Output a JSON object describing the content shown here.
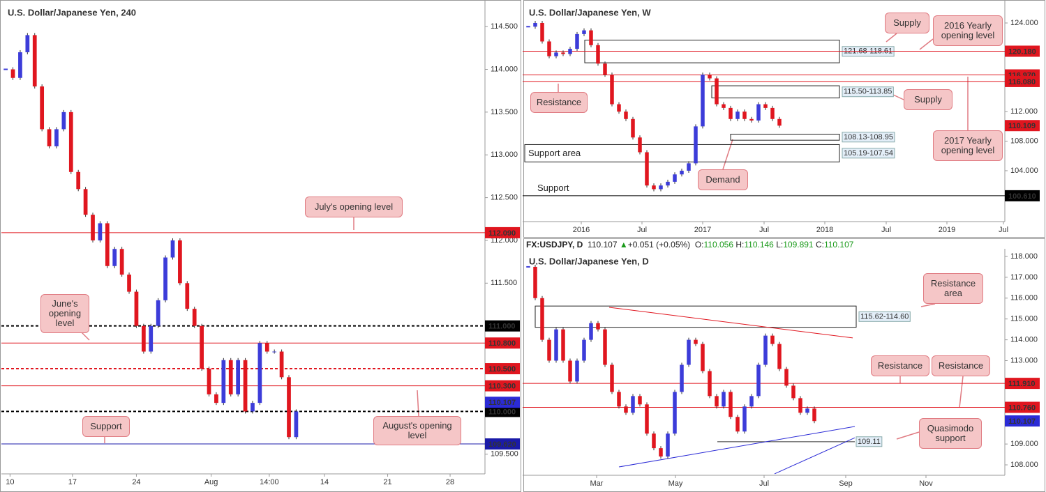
{
  "chart_data": [
    {
      "type": "candlestick",
      "title": "U.S. Dollar/Japanese Yen, 240",
      "values": [
        114.0,
        113.9,
        114.2,
        114.4,
        113.8,
        113.3,
        113.1,
        113.3,
        113.5,
        112.8,
        112.6,
        112.3,
        112.0,
        112.2,
        111.7,
        111.9,
        111.6,
        111.4,
        111.0,
        110.7,
        111.0,
        111.3,
        111.8,
        112.0,
        111.5,
        111.2,
        111.0,
        110.5,
        110.2,
        110.1,
        110.6,
        110.2,
        110.6,
        110.0,
        110.1,
        110.8,
        110.7,
        110.7,
        110.4,
        109.7,
        110.0
      ],
      "xlim": [
        -0.3,
        66
      ],
      "ylim": [
        109.27,
        114.77
      ],
      "xticks": [
        {
          "value": 0.6,
          "label": "10"
        },
        {
          "value": 9.2,
          "label": "17"
        },
        {
          "value": 18,
          "label": "24"
        },
        {
          "value": 28.3,
          "label": "Aug"
        },
        {
          "value": 36.3,
          "label": "14:00"
        },
        {
          "value": 43.9,
          "label": "14"
        },
        {
          "value": 52.6,
          "label": "21"
        },
        {
          "value": 61.2,
          "label": "28"
        }
      ],
      "yticks": [
        {
          "value": 114.5,
          "label": "114.500"
        },
        {
          "value": 114,
          "label": "114.000"
        },
        {
          "value": 113.5,
          "label": "113.500"
        },
        {
          "value": 113,
          "label": "113.000"
        },
        {
          "value": 112.5,
          "label": "112.500"
        },
        {
          "value": 112,
          "label": "112.000"
        },
        {
          "value": 111.5,
          "label": "111.500"
        },
        {
          "value": 109.5,
          "label": "109.500"
        }
      ],
      "levels": [
        {
          "value": 112.09,
          "label": "112.090",
          "color": "#e0161f",
          "dash": false
        },
        {
          "value": 111,
          "label": "111.000",
          "color": "#000000",
          "dash": true
        },
        {
          "value": 110.8,
          "label": "110.800",
          "color": "#e0161f",
          "dash": false
        },
        {
          "value": 110.5,
          "label": "110.500",
          "color": "#e0161f",
          "dash": true
        },
        {
          "value": 110.3,
          "label": "110.300",
          "color": "#e0161f",
          "dash": false
        },
        {
          "value": 110,
          "label": "110.000",
          "color": "#000000",
          "dash": true
        },
        {
          "value": 109.62,
          "label": "109.620",
          "color": "#1a1aa8",
          "dash": false
        }
      ],
      "current": {
        "value": 110.107,
        "label": "110.107",
        "color": "#2b2bd6"
      },
      "up_color": "#3c3cd9",
      "down_color": "#e0161f",
      "annotations": [
        "July's opening level",
        "June's opening level",
        "Support",
        "August's opening level"
      ]
    },
    {
      "type": "candlestick",
      "title": "U.S. Dollar/Japanese Yen, W",
      "values": [
        123.5,
        124.0,
        121.5,
        119.5,
        120.0,
        119.8,
        120.5,
        122.5,
        123.0,
        121.0,
        118.5,
        117.0,
        113.0,
        112.0,
        111.0,
        108.5,
        106.5,
        102.0,
        101.5,
        102.0,
        102.5,
        103.5,
        104.0,
        105.0,
        110.0,
        117.0,
        116.5,
        113.0,
        112.5,
        111.0,
        112.0,
        111.0,
        110.8,
        113.0,
        112.5,
        111.0,
        110.1
      ],
      "xlim": [
        -0.5,
        68.3
      ],
      "ylim": [
        97.11,
        126.64
      ],
      "xticks": [
        {
          "value": 7.6,
          "label": "2016"
        },
        {
          "value": 16.3,
          "label": "Jul"
        },
        {
          "value": 25,
          "label": "2017"
        },
        {
          "value": 33.8,
          "label": "Jul"
        },
        {
          "value": 42.5,
          "label": "2018"
        },
        {
          "value": 51.3,
          "label": "Jul"
        },
        {
          "value": 60,
          "label": "2019"
        },
        {
          "value": 68.1,
          "label": "Jul"
        }
      ],
      "yticks": [
        {
          "value": 124,
          "label": "124.000"
        },
        {
          "value": 112,
          "label": "112.000"
        },
        {
          "value": 108,
          "label": "108.000"
        },
        {
          "value": 104,
          "label": "104.000"
        }
      ],
      "levels": [
        {
          "value": 120.18,
          "label": "120.180",
          "color": "#e0161f",
          "dash": false
        },
        {
          "value": 116.97,
          "label": "116.970",
          "color": "#e0161f",
          "dash": false
        },
        {
          "value": 116.08,
          "label": "116.080",
          "color": "#e0161f",
          "dash": false
        },
        {
          "value": 100.61,
          "label": "100.610",
          "color": "#000000",
          "dash": false
        }
      ],
      "zones": [
        {
          "label": "121.68-118.61",
          "high": 121.68,
          "low": 118.61,
          "x": [
            8.1,
            44.6
          ]
        },
        {
          "label": "115.50-113.85",
          "high": 115.5,
          "low": 113.85,
          "x": [
            26.3,
            44.6
          ]
        },
        {
          "label": "108.13-108.95",
          "high": 108.95,
          "low": 108.13,
          "x": [
            29,
            44.6
          ]
        },
        {
          "label": "105.19-107.54",
          "high": 107.54,
          "low": 105.19,
          "x": [
            -0.5,
            44.6
          ]
        }
      ],
      "current": {
        "value": 110.109,
        "label": "110.109",
        "color": "#e0161f"
      },
      "up_color": "#3c3cd9",
      "down_color": "#e0161f",
      "annotations": [
        "Supply",
        "2016 Yearly opening level",
        "Resistance",
        "Supply",
        "2017 Yearly opening level",
        "Demand",
        "Support area",
        "Support"
      ]
    },
    {
      "type": "candlestick",
      "title": "U.S. Dollar/Japanese Yen, D",
      "header": {
        "symbol": "FX:USDJPY, D",
        "price": "110.107",
        "arrow": "▲",
        "change": "+0.051 (+0.05%)",
        "o_label": "O:",
        "o": "110.056",
        "h_label": "H:",
        "h": "110.146",
        "l_label": "L:",
        "l": "109.891",
        "c_label": "C:",
        "c": "110.107"
      },
      "values": [
        117.5,
        116.0,
        114.0,
        113.0,
        114.5,
        113.0,
        112.0,
        113.0,
        114.0,
        114.8,
        114.5,
        112.8,
        111.5,
        110.8,
        110.5,
        111.3,
        110.9,
        109.5,
        108.8,
        108.4,
        109.5,
        111.5,
        112.8,
        114.0,
        113.8,
        112.5,
        111.3,
        110.8,
        111.5,
        110.3,
        109.6,
        110.8,
        111.3,
        112.8,
        114.2,
        113.8,
        112.6,
        111.8,
        111.2,
        110.5,
        110.7,
        110.1
      ],
      "xlim": [
        -0.5,
        68.3
      ],
      "ylim": [
        107.5,
        118.2
      ],
      "xticks": [
        {
          "value": 9.8,
          "label": "Mar"
        },
        {
          "value": 21.1,
          "label": "May"
        },
        {
          "value": 33.8,
          "label": "Jul"
        },
        {
          "value": 45.5,
          "label": "Sep"
        },
        {
          "value": 57,
          "label": "Nov"
        }
      ],
      "yticks": [
        {
          "value": 118,
          "label": "118.000"
        },
        {
          "value": 117,
          "label": "117.000"
        },
        {
          "value": 116,
          "label": "116.000"
        },
        {
          "value": 115,
          "label": "115.000"
        },
        {
          "value": 114,
          "label": "114.000"
        },
        {
          "value": 113,
          "label": "113.000"
        },
        {
          "value": 109,
          "label": "109.000"
        },
        {
          "value": 108,
          "label": "108.000"
        }
      ],
      "levels": [
        {
          "value": 111.91,
          "label": "111.910",
          "color": "#e0161f",
          "dash": false
        },
        {
          "value": 110.76,
          "label": "110.760",
          "color": "#e0161f",
          "dash": false
        }
      ],
      "zones": [
        {
          "label": "115.62-114.60",
          "high": 115.62,
          "low": 114.6,
          "x": [
            1,
            47
          ]
        }
      ],
      "segments": [
        {
          "label": "109.11",
          "value": 109.11,
          "x": [
            27.1,
            46.8
          ]
        }
      ],
      "trendlines": [
        {
          "color": "#e0161f",
          "x": [
            11.6,
            46.5
          ],
          "y": [
            115.56,
            114.09
          ]
        },
        {
          "color": "#2b2bd6",
          "x": [
            13,
            46.8
          ],
          "y": [
            107.9,
            109.84
          ]
        },
        {
          "color": "#2b2bd6",
          "x": [
            35.3,
            46.8
          ],
          "y": [
            107.57,
            109.3
          ]
        }
      ],
      "current": {
        "value": 110.107,
        "label": "110.107",
        "color": "#2b2bd6"
      },
      "up_color": "#3c3cd9",
      "down_color": "#e0161f",
      "annotations": [
        "Resistance area",
        "Resistance",
        "Resistance",
        "Quasimodo support"
      ]
    }
  ]
}
